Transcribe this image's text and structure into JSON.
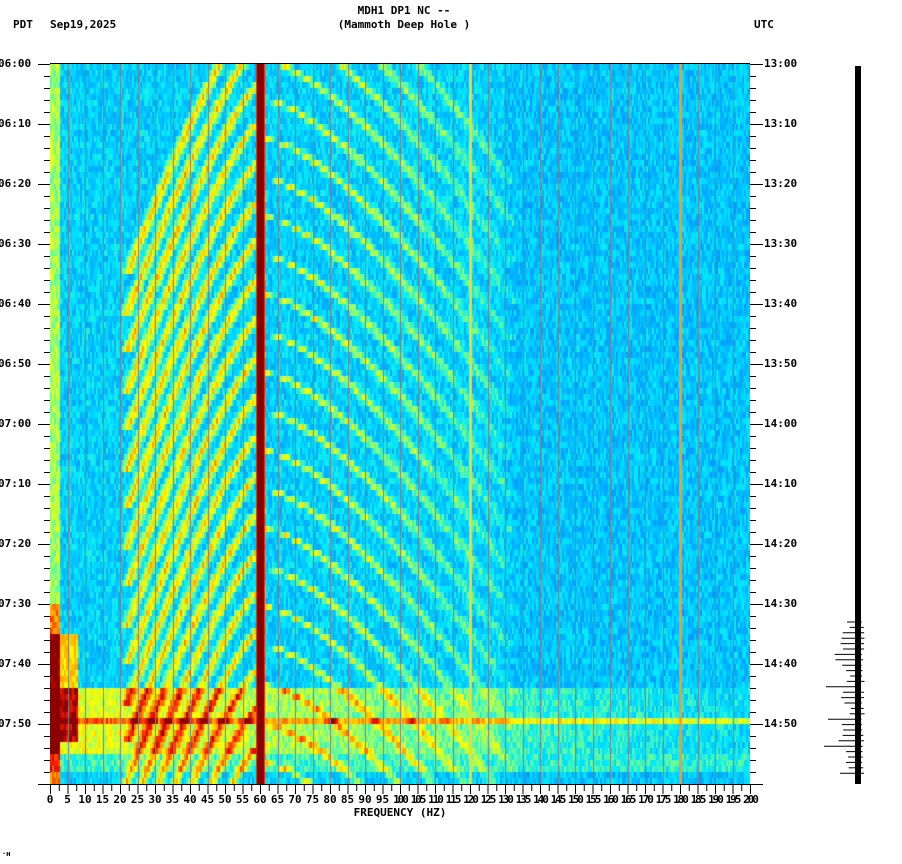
{
  "header": {
    "station_line": "MDH1 DP1 NC --",
    "location_line": "(Mammoth Deep Hole )",
    "left_timezone": "PDT",
    "date": "Sep19,2025",
    "right_timezone": "UTC"
  },
  "corner_mark": "·ʜ",
  "chart_data": {
    "type": "heatmap",
    "title": "MDH1 DP1 NC -- (Mammoth Deep Hole )",
    "subtitle": "Sep19,2025",
    "xlabel": "FREQUENCY (HZ)",
    "ylabel_left": "PDT",
    "ylabel_right": "UTC",
    "xlim": [
      0,
      200
    ],
    "x_ticks": [
      0,
      5,
      10,
      15,
      20,
      25,
      30,
      35,
      40,
      45,
      50,
      55,
      60,
      65,
      70,
      75,
      80,
      85,
      90,
      95,
      100,
      105,
      110,
      115,
      120,
      125,
      130,
      135,
      140,
      145,
      150,
      155,
      160,
      165,
      170,
      175,
      180,
      185,
      190,
      195,
      200
    ],
    "x_minor_tick_step": 1,
    "y_left_labels": [
      "06:00",
      "06:10",
      "06:20",
      "06:30",
      "06:40",
      "06:50",
      "07:00",
      "07:10",
      "07:20",
      "07:30",
      "07:40",
      "07:50"
    ],
    "y_right_labels": [
      "13:00",
      "13:10",
      "13:20",
      "13:30",
      "13:40",
      "13:50",
      "14:00",
      "14:10",
      "14:20",
      "14:30",
      "14:40",
      "14:50"
    ],
    "y_minor_tick_minutes": 2,
    "time_span_minutes": 120,
    "grid": "vertical gray lines every 5 Hz",
    "colormap": [
      "#0000c8",
      "#0050ff",
      "#00a0ff",
      "#00e8ff",
      "#80ff80",
      "#ffff00",
      "#ffa000",
      "#ff2000",
      "#8b0000"
    ],
    "features": {
      "persistent_lines_hz": [
        {
          "freq": 60,
          "intensity": "very strong",
          "color": "#8b0000"
        },
        {
          "freq": 120,
          "intensity": "weak",
          "color": "#ffff00"
        },
        {
          "freq": 180,
          "intensity": "weak",
          "color": "#ffa000"
        },
        {
          "freq": 10,
          "intensity": "weak",
          "color": "#ffff00"
        }
      ],
      "low_frequency_energy": {
        "freq_range_hz": [
          0,
          3
        ],
        "strongest_time_range": [
          "07:35",
          "07:53"
        ]
      },
      "broadband_event": {
        "time_range": [
          "07:44",
          "07:54"
        ],
        "peak_time": "07:50",
        "freq_range_hz": [
          0,
          200
        ]
      },
      "doppler_arc_families": "repeating curved harmonic arcs between ~20 and ~130 Hz, spacing ~6 minutes"
    }
  },
  "seismogram": {
    "label": "waveform trace",
    "quiet_until": "07:33",
    "burst_peak_times": [
      "07:44",
      "07:49",
      "07:54"
    ]
  }
}
